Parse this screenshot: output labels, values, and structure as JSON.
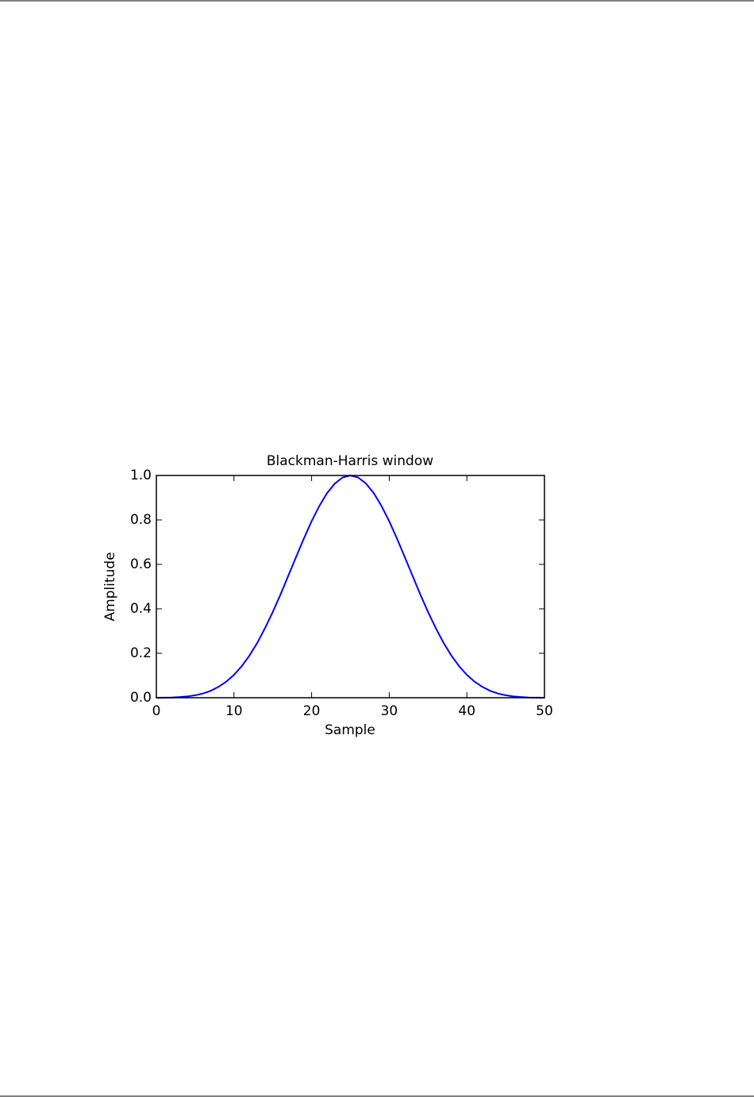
{
  "chart_data": {
    "type": "line",
    "title": "Blackman-Harris window",
    "x_label": "Sample",
    "y_label": "Amplitude",
    "x": [
      0,
      1,
      2,
      3,
      4,
      5,
      6,
      7,
      8,
      9,
      10,
      11,
      12,
      13,
      14,
      15,
      16,
      17,
      18,
      19,
      20,
      21,
      22,
      23,
      24,
      25,
      26,
      27,
      28,
      29,
      30,
      31,
      32,
      33,
      34,
      35,
      36,
      37,
      38,
      39,
      40,
      41,
      42,
      43,
      44,
      45,
      46,
      47,
      48,
      49,
      50
    ],
    "series": [
      {
        "name": "Blackman-Harris",
        "color": "#0000ff",
        "values": [
          0.0,
          0.0003,
          0.001,
          0.003,
          0.006,
          0.011,
          0.019,
          0.031,
          0.049,
          0.072,
          0.103,
          0.142,
          0.19,
          0.247,
          0.313,
          0.386,
          0.465,
          0.549,
          0.633,
          0.716,
          0.794,
          0.863,
          0.921,
          0.964,
          0.991,
          1.0,
          0.991,
          0.964,
          0.921,
          0.863,
          0.794,
          0.716,
          0.633,
          0.549,
          0.465,
          0.386,
          0.313,
          0.247,
          0.19,
          0.142,
          0.103,
          0.072,
          0.049,
          0.031,
          0.019,
          0.011,
          0.006,
          0.003,
          0.001,
          0.0003,
          0.0
        ]
      }
    ],
    "xlim": [
      0,
      50
    ],
    "ylim": [
      0,
      1
    ],
    "xticks": [
      0,
      10,
      20,
      30,
      40,
      50
    ],
    "yticks": [
      {
        "value": 0,
        "label": "0.0"
      },
      {
        "value": 0.2,
        "label": "0.2"
      },
      {
        "value": 0.4,
        "label": "0.4"
      },
      {
        "value": 0.6,
        "label": "0.6"
      },
      {
        "value": 0.8,
        "label": "0.8"
      },
      {
        "value": 1,
        "label": "1.0"
      }
    ],
    "grid": false
  }
}
